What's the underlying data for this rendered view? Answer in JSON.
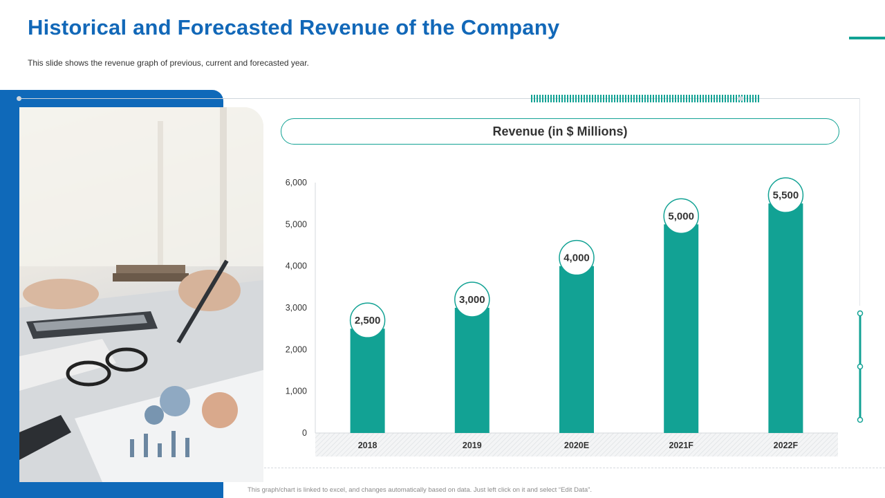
{
  "slide": {
    "title": "Historical and Forecasted Revenue of the Company",
    "subtitle": "This slide shows the revenue  graph of previous,  current and forecasted year.",
    "footnote": "This graph/chart is linked to excel, and changes automatically based on data. Just left click on it and select “Edit Data”."
  },
  "colors": {
    "title": "#1268b8",
    "panel": "#0f69b9",
    "accent": "#12a294",
    "bar": "#12a294",
    "axis_text": "#333333"
  },
  "chart_data": {
    "type": "bar",
    "title": "Revenue (in $ Millions)",
    "categories": [
      "2018",
      "2019",
      "2020E",
      "2021F",
      "2022F"
    ],
    "values": [
      2500,
      3000,
      4000,
      5000,
      5500
    ],
    "value_labels": [
      "2,500",
      "3,000",
      "4,000",
      "5,000",
      "5,500"
    ],
    "ylim": [
      0,
      6000
    ],
    "yticks": [
      0,
      1000,
      2000,
      3000,
      4000,
      5000,
      6000
    ],
    "ytick_labels": [
      "0",
      "1,000",
      "2,000",
      "3,000",
      "4,000",
      "5,000",
      "6,000"
    ],
    "xlabel": "",
    "ylabel": "",
    "grid": false,
    "legend": "none"
  }
}
